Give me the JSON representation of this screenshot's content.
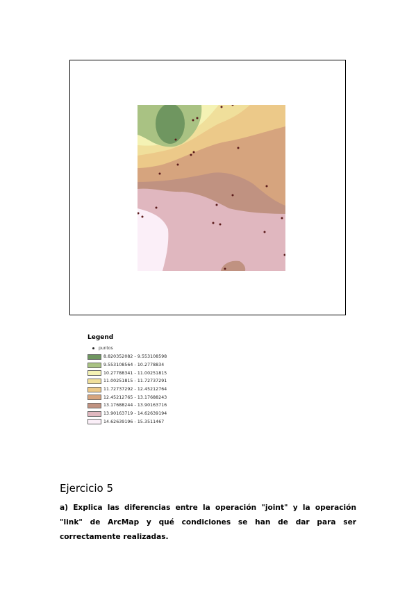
{
  "legend": {
    "title": "Legend",
    "points_label": "puntos",
    "classes": [
      {
        "label": "8.820352082 - 9.553108598",
        "color": "#6f9660"
      },
      {
        "label": "9.553108564 - 10.2778834",
        "color": "#a9c283"
      },
      {
        "label": "10.27788341 - 11.00251815",
        "color": "#f4f2b4"
      },
      {
        "label": "11.00251815 - 11.72737291",
        "color": "#f0df9b"
      },
      {
        "label": "11.72737292 - 12.45212764",
        "color": "#ecc989"
      },
      {
        "label": "12.45212765 - 13.17688243",
        "color": "#d6a47e"
      },
      {
        "label": "13.17688244 - 13.90163716",
        "color": "#c09281"
      },
      {
        "label": "13.90163719 - 14.62639194",
        "color": "#e0b7bf"
      },
      {
        "label": "14.62639196 - 15.3511467",
        "color": "#fbeff8"
      }
    ]
  },
  "exercise": {
    "title": "Ejercicio 5",
    "text": "a) Explica las diferencias entre la operación \"joint\" y la operación \"link\" de ArcMap y qué condiciones se han de dar para ser correctamente realizadas."
  }
}
